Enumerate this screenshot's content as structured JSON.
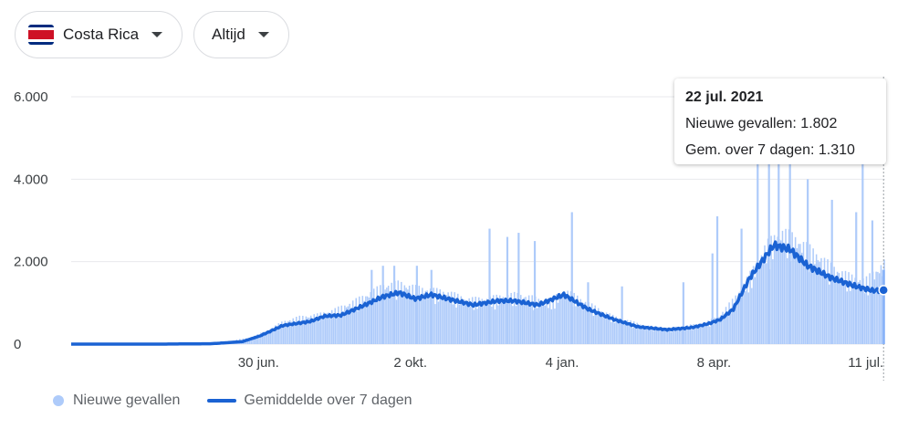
{
  "filters": {
    "country_label": "Costa Rica",
    "period_label": "Altijd"
  },
  "icons": {
    "flag": "costa-rica-flag-icon",
    "dropdown": "caret-down-icon"
  },
  "colors": {
    "bars": "#aecbfa",
    "bars_highlight": "#8ab4f8",
    "average_line": "#1a62d3",
    "grid": "#e8eaed",
    "text": "#3c4043",
    "flag_blue": "#002b7f",
    "flag_white": "#ffffff",
    "flag_red": "#ce1126"
  },
  "tooltip": {
    "date": "22 jul. 2021",
    "cases_text": "Nieuwe gevallen: 1.802",
    "average_text": "Gem. over 7 dagen: 1.310"
  },
  "legend": {
    "bars_label": "Nieuwe gevallen",
    "line_label": "Gemiddelde over 7 dagen"
  },
  "chart_data": {
    "type": "bar",
    "x_ticks": [
      "30 jun.",
      "2 okt.",
      "4 jan.",
      "8 apr.",
      "11 jul."
    ],
    "y_ticks": [
      "0",
      "2.000",
      "4.000",
      "6.000"
    ],
    "y_tick_values": [
      0,
      2000,
      4000,
      6000
    ],
    "ylim": [
      0,
      6000
    ],
    "grid": true,
    "legend_position": "bottom-left",
    "series": [
      {
        "name": "Nieuwe gevallen",
        "type": "bar",
        "points": [
          [
            "2020-03-06",
            10
          ],
          [
            "2020-04-01",
            25
          ],
          [
            "2020-05-01",
            10
          ],
          [
            "2020-05-25",
            20
          ],
          [
            "2020-06-10",
            60
          ],
          [
            "2020-06-25",
            150
          ],
          [
            "2020-07-05",
            300
          ],
          [
            "2020-07-15",
            500
          ],
          [
            "2020-07-25",
            600
          ],
          [
            "2020-08-05",
            650
          ],
          [
            "2020-08-15",
            750
          ],
          [
            "2020-08-25",
            900
          ],
          [
            "2020-09-05",
            1100
          ],
          [
            "2020-09-15",
            1300
          ],
          [
            "2020-09-25",
            1350
          ],
          [
            "2020-10-05",
            1250
          ],
          [
            "2020-10-15",
            1200
          ],
          [
            "2020-10-25",
            1150
          ],
          [
            "2020-11-05",
            1000
          ],
          [
            "2020-11-15",
            1000
          ],
          [
            "2020-11-25",
            1050
          ],
          [
            "2020-12-05",
            1100
          ],
          [
            "2020-12-15",
            1050
          ],
          [
            "2020-12-25",
            900
          ],
          [
            "2021-01-05",
            1200
          ],
          [
            "2021-01-15",
            1000
          ],
          [
            "2021-01-25",
            800
          ],
          [
            "2021-02-05",
            600
          ],
          [
            "2021-02-15",
            500
          ],
          [
            "2021-02-25",
            400
          ],
          [
            "2021-03-10",
            350
          ],
          [
            "2021-03-20",
            400
          ],
          [
            "2021-04-01",
            450
          ],
          [
            "2021-04-10",
            600
          ],
          [
            "2021-04-20",
            1000
          ],
          [
            "2021-05-01",
            1600
          ],
          [
            "2021-05-10",
            2200
          ],
          [
            "2021-05-20",
            2500
          ],
          [
            "2021-05-30",
            2300
          ],
          [
            "2021-06-10",
            2000
          ],
          [
            "2021-06-20",
            1700
          ],
          [
            "2021-07-01",
            1500
          ],
          [
            "2021-07-10",
            1400
          ],
          [
            "2021-07-22",
            1802
          ]
        ],
        "spikes": [
          [
            "2020-09-08",
            1800
          ],
          [
            "2020-09-15",
            1900
          ],
          [
            "2020-09-22",
            1900
          ],
          [
            "2020-10-06",
            1900
          ],
          [
            "2020-10-15",
            1800
          ],
          [
            "2020-11-20",
            2800
          ],
          [
            "2020-12-01",
            2600
          ],
          [
            "2020-12-08",
            2700
          ],
          [
            "2020-12-18",
            2500
          ],
          [
            "2021-01-10",
            3200
          ],
          [
            "2021-01-20",
            1500
          ],
          [
            "2021-02-10",
            1400
          ],
          [
            "2021-03-20",
            1500
          ],
          [
            "2021-04-07",
            2200
          ],
          [
            "2021-04-10",
            3100
          ],
          [
            "2021-04-25",
            2800
          ],
          [
            "2021-05-05",
            4800
          ],
          [
            "2021-05-12",
            5000
          ],
          [
            "2021-05-18",
            5000
          ],
          [
            "2021-05-25",
            4900
          ],
          [
            "2021-06-05",
            4000
          ],
          [
            "2021-06-20",
            3500
          ],
          [
            "2021-07-05",
            3200
          ],
          [
            "2021-07-09",
            4600
          ],
          [
            "2021-07-15",
            3000
          ]
        ]
      },
      {
        "name": "Gemiddelde over 7 dagen",
        "type": "line",
        "points": [
          [
            "2020-03-06",
            0
          ],
          [
            "2020-05-01",
            0
          ],
          [
            "2020-06-01",
            10
          ],
          [
            "2020-06-20",
            60
          ],
          [
            "2020-07-01",
            200
          ],
          [
            "2020-07-15",
            450
          ],
          [
            "2020-08-01",
            550
          ],
          [
            "2020-08-10",
            680
          ],
          [
            "2020-08-20",
            700
          ],
          [
            "2020-09-01",
            900
          ],
          [
            "2020-09-15",
            1150
          ],
          [
            "2020-09-25",
            1250
          ],
          [
            "2020-10-05",
            1100
          ],
          [
            "2020-10-15",
            1200
          ],
          [
            "2020-10-25",
            1100
          ],
          [
            "2020-11-10",
            950
          ],
          [
            "2020-11-25",
            1050
          ],
          [
            "2020-12-05",
            1050
          ],
          [
            "2020-12-20",
            950
          ],
          [
            "2021-01-05",
            1200
          ],
          [
            "2021-01-20",
            850
          ],
          [
            "2021-02-05",
            600
          ],
          [
            "2021-02-20",
            420
          ],
          [
            "2021-03-10",
            350
          ],
          [
            "2021-03-25",
            400
          ],
          [
            "2021-04-05",
            500
          ],
          [
            "2021-04-12",
            600
          ],
          [
            "2021-04-20",
            850
          ],
          [
            "2021-04-30",
            1600
          ],
          [
            "2021-05-15",
            2400
          ],
          [
            "2021-05-25",
            2300
          ],
          [
            "2021-06-05",
            1900
          ],
          [
            "2021-06-20",
            1600
          ],
          [
            "2021-07-05",
            1400
          ],
          [
            "2021-07-15",
            1300
          ],
          [
            "2021-07-22",
            1310
          ]
        ]
      }
    ],
    "highlight": {
      "x": "2021-07-22",
      "bar": 1802,
      "line": 1310
    }
  }
}
